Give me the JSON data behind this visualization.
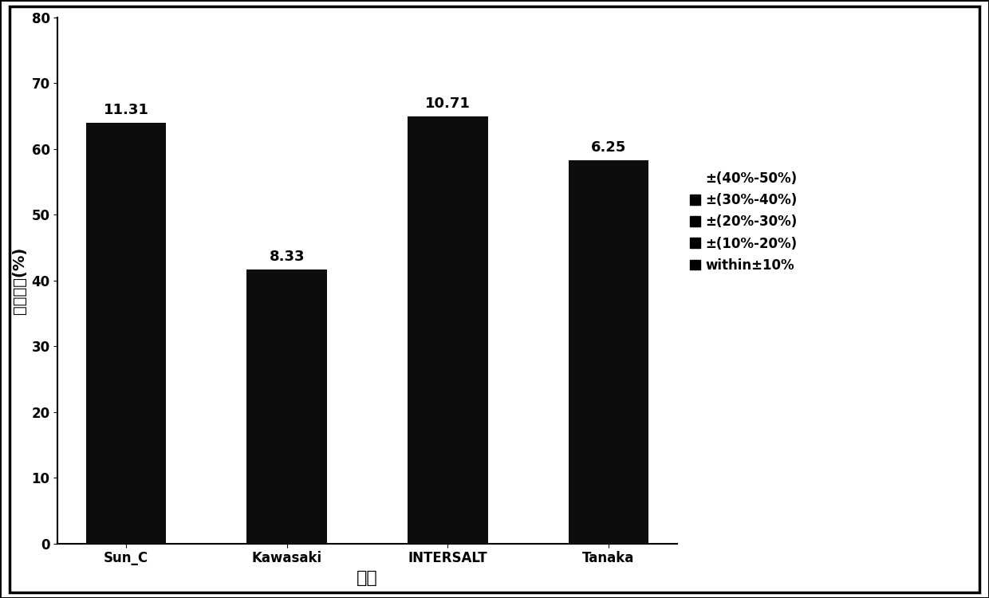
{
  "categories": [
    "Sun_C",
    "Kawasaki",
    "INTERSALT",
    "Tanaka"
  ],
  "values": [
    64.0,
    41.67,
    65.0,
    58.33
  ],
  "labels": [
    "11.31",
    "8.33",
    "10.71",
    "6.25"
  ],
  "bar_color": "#0d0d0d",
  "xlabel": "方法",
  "ylabel": "分布比例(%)",
  "ylim": [
    0,
    80
  ],
  "yticks": [
    0,
    10,
    20,
    30,
    40,
    50,
    60,
    70,
    80
  ],
  "legend_labels": [
    "±(40%-50%)",
    "±(30%-40%)",
    "±(20%-30%)",
    "±(10%-20%)",
    "within±10%"
  ],
  "background_color": "#ffffff",
  "bar_width": 0.5,
  "label_fontsize": 13,
  "axis_fontsize": 14,
  "tick_fontsize": 12,
  "legend_fontsize": 12,
  "figure_width": 12.4,
  "figure_height": 7.5,
  "dpi": 100
}
